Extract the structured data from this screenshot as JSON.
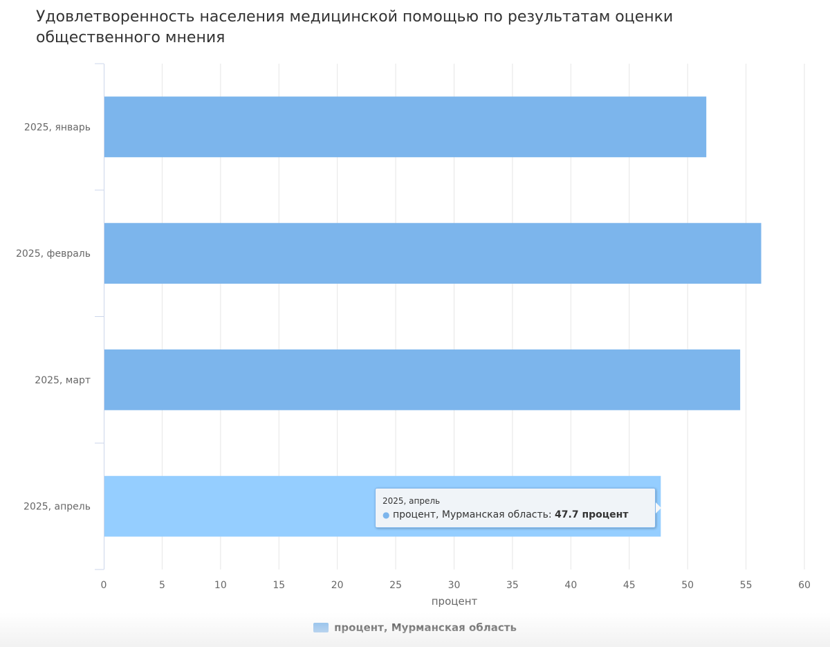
{
  "chart_data": {
    "type": "bar",
    "orientation": "horizontal",
    "title": "Удовлетворенность населения медицинской помощью по результатам оценки общественного мнения",
    "categories": [
      "2025, январь",
      "2025, февраль",
      "2025, март",
      "2025, апрель"
    ],
    "series": [
      {
        "name": "процент, Мурманская область",
        "values": [
          51.6,
          56.3,
          54.5,
          47.7
        ],
        "color": "#7cb5ec",
        "hover_color": "#95ceff"
      }
    ],
    "xlabel": "процент",
    "ylabel": "",
    "xlim": [
      0,
      60
    ],
    "ticks": [
      "0",
      "5",
      "10",
      "15",
      "20",
      "25",
      "30",
      "35",
      "40",
      "45",
      "50",
      "55",
      "60"
    ],
    "grid": true,
    "legend_position": "bottom-center",
    "highlighted_category": "2025, апрель"
  },
  "tooltip": {
    "header": "2025, апрель",
    "series_label": "процент, Мурманская область: ",
    "value_text": "47.7 процент"
  },
  "legend": {
    "label": "процент, Мурманская область"
  }
}
